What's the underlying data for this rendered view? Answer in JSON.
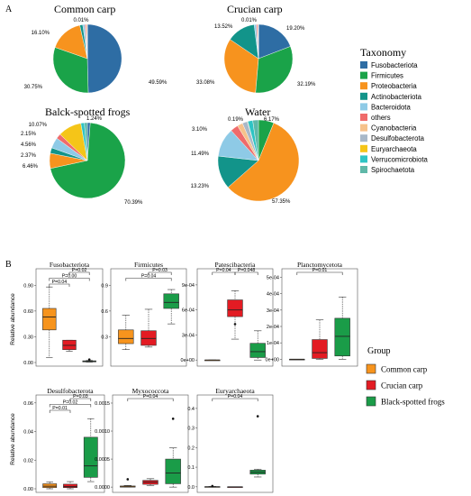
{
  "panel_a_label": "A",
  "panel_b_label": "B",
  "legend_a": {
    "title": "Taxonomy",
    "items": [
      {
        "name": "Fusobacteriota",
        "color": "#2e6da4"
      },
      {
        "name": "Firmicutes",
        "color": "#1aa349"
      },
      {
        "name": "Proteobacteria",
        "color": "#f7931e"
      },
      {
        "name": "Actinobacteriota",
        "color": "#12948a"
      },
      {
        "name": "Bacteroidota",
        "color": "#8ecae6"
      },
      {
        "name": "others",
        "color": "#ef6b6b"
      },
      {
        "name": "Cyanobacteria",
        "color": "#f6c28b"
      },
      {
        "name": "Desulfobacterota",
        "color": "#a9b8c8"
      },
      {
        "name": "Euryarchaeota",
        "color": "#f5c518"
      },
      {
        "name": "Verrucomicrobiota",
        "color": "#2ec4c4"
      },
      {
        "name": "Spirochaetota",
        "color": "#5fb8a8"
      }
    ]
  },
  "legend_b": {
    "title": "Group",
    "items": [
      {
        "name": "Common carp",
        "color": "#f7941d"
      },
      {
        "name": "Crucian carp",
        "color": "#e31b23"
      },
      {
        "name": "Black-spotted frogs",
        "color": "#1a9c48"
      }
    ]
  },
  "y_axis_label": "Relative abundance",
  "chart_data": [
    {
      "type": "pie",
      "title": "Common carp",
      "slices": [
        {
          "name": "Fusobacteriota",
          "value": 49.59,
          "label": "49.59%",
          "color": "#2e6da4"
        },
        {
          "name": "Firmicutes",
          "value": 30.75,
          "label": "30.75%",
          "color": "#1aa349"
        },
        {
          "name": "Proteobacteria",
          "value": 16.1,
          "label": "16.10%",
          "color": "#f7931e"
        },
        {
          "name": "Actinobacteriota",
          "value": 1.4,
          "label": "",
          "color": "#12948a"
        },
        {
          "name": "Bacteroidota",
          "value": 1.0,
          "label": "",
          "color": "#8ecae6"
        },
        {
          "name": "others",
          "value": 0.6,
          "label": "",
          "color": "#ef6b6b"
        },
        {
          "name": "Cyanobacteria",
          "value": 0.55,
          "label": "",
          "color": "#f6c28b"
        },
        {
          "name": "Spirochaetota",
          "value": 0.01,
          "label": "0.01%",
          "color": "#5fb8a8"
        }
      ]
    },
    {
      "type": "pie",
      "title": "Crucian carp",
      "slices": [
        {
          "name": "Fusobacteriota",
          "value": 19.2,
          "label": "19.20%",
          "color": "#2e6da4"
        },
        {
          "name": "Firmicutes",
          "value": 32.19,
          "label": "32.19%",
          "color": "#1aa349"
        },
        {
          "name": "Proteobacteria",
          "value": 33.08,
          "label": "33.08%",
          "color": "#f7931e"
        },
        {
          "name": "Actinobacteriota",
          "value": 13.52,
          "label": "13.52%",
          "color": "#12948a"
        },
        {
          "name": "Bacteroidota",
          "value": 1.0,
          "label": "",
          "color": "#8ecae6"
        },
        {
          "name": "others",
          "value": 0.6,
          "label": "",
          "color": "#ef6b6b"
        },
        {
          "name": "Cyanobacteria",
          "value": 0.4,
          "label": "",
          "color": "#f6c28b"
        },
        {
          "name": "Spirochaetota",
          "value": 0.01,
          "label": "0.01%",
          "color": "#5fb8a8"
        }
      ]
    },
    {
      "type": "pie",
      "title": "Balck-spotted frogs",
      "slices": [
        {
          "name": "Fusobacteriota",
          "value": 1.24,
          "label": "1.24%",
          "color": "#2e6da4"
        },
        {
          "name": "Firmicutes",
          "value": 70.39,
          "label": "70.39%",
          "color": "#1aa349"
        },
        {
          "name": "Proteobacteria",
          "value": 6.46,
          "label": "6.46%",
          "color": "#f7931e"
        },
        {
          "name": "Actinobacteriota",
          "value": 2.37,
          "label": "2.37%",
          "color": "#12948a"
        },
        {
          "name": "Bacteroidota",
          "value": 4.56,
          "label": "4.56%",
          "color": "#8ecae6"
        },
        {
          "name": "others",
          "value": 2.15,
          "label": "2.15%",
          "color": "#ef6b6b"
        },
        {
          "name": "Euryarchaeota",
          "value": 10.07,
          "label": "10.07%",
          "color": "#f5c518"
        },
        {
          "name": "Verrucomicrobiota",
          "value": 1.5,
          "label": "",
          "color": "#2ec4c4"
        },
        {
          "name": "Spirochaetota",
          "value": 1.26,
          "label": "",
          "color": "#5fb8a8"
        }
      ]
    },
    {
      "type": "pie",
      "title": "Water",
      "slices": [
        {
          "name": "Firmicutes",
          "value": 6.17,
          "label": "6.17%",
          "color": "#1aa349"
        },
        {
          "name": "Proteobacteria",
          "value": 57.35,
          "label": "57.35%",
          "color": "#f7931e"
        },
        {
          "name": "Actinobacteriota",
          "value": 13.23,
          "label": "13.23%",
          "color": "#12948a"
        },
        {
          "name": "Bacteroidota",
          "value": 11.49,
          "label": "11.49%",
          "color": "#8ecae6"
        },
        {
          "name": "others",
          "value": 3.1,
          "label": "3.10%",
          "color": "#ef6b6b"
        },
        {
          "name": "Cyanobacteria",
          "value": 2.2,
          "label": "",
          "color": "#f6c28b"
        },
        {
          "name": "Desulfobacterota",
          "value": 2.0,
          "label": "",
          "color": "#a9b8c8"
        },
        {
          "name": "Euryarchaeota",
          "value": 0.19,
          "label": "0.19%",
          "color": "#f5c518"
        },
        {
          "name": "Verrucomicrobiota",
          "value": 2.0,
          "label": "",
          "color": "#2ec4c4"
        },
        {
          "name": "Spirochaetota",
          "value": 2.27,
          "label": "",
          "color": "#5fb8a8"
        }
      ]
    },
    {
      "type": "box",
      "title": "Fusobacteriota",
      "ylim": [
        0,
        1.05
      ],
      "yticks": [
        {
          "v": 0,
          "t": "0.00"
        },
        {
          "v": 0.3,
          "t": "0.30"
        },
        {
          "v": 0.6,
          "t": "0.60"
        },
        {
          "v": 0.9,
          "t": "0.90"
        }
      ],
      "groups": [
        {
          "min": 0.06,
          "q1": 0.38,
          "median": 0.53,
          "q3": 0.63,
          "max": 0.88,
          "outliers": []
        },
        {
          "min": 0.13,
          "q1": 0.15,
          "median": 0.2,
          "q3": 0.26,
          "max": 0.26,
          "outliers": []
        },
        {
          "min": 0.005,
          "q1": 0.008,
          "median": 0.012,
          "q3": 0.02,
          "max": 0.025,
          "outliers": [
            0.035
          ]
        }
      ],
      "brackets": [
        {
          "a": 1,
          "b": 2,
          "label": "P=0.02",
          "level": 0
        },
        {
          "a": 0,
          "b": 2,
          "label": "P=0.00",
          "level": 1
        },
        {
          "a": 0,
          "b": 1,
          "label": "P=0.04",
          "level": 2
        }
      ]
    },
    {
      "type": "box",
      "title": "Firmicutes",
      "ylim": [
        0,
        1.05
      ],
      "yticks": [
        {
          "v": 0.3,
          "t": "0.3"
        },
        {
          "v": 0.6,
          "t": "0.6"
        },
        {
          "v": 0.9,
          "t": "0.9"
        }
      ],
      "groups": [
        {
          "min": 0.15,
          "q1": 0.22,
          "median": 0.28,
          "q3": 0.38,
          "max": 0.55,
          "outliers": []
        },
        {
          "min": 0.18,
          "q1": 0.2,
          "median": 0.28,
          "q3": 0.37,
          "max": 0.62,
          "outliers": []
        },
        {
          "min": 0.45,
          "q1": 0.63,
          "median": 0.7,
          "q3": 0.8,
          "max": 0.85,
          "outliers": []
        }
      ],
      "brackets": [
        {
          "a": 1,
          "b": 2,
          "label": "P=0.03",
          "level": 0
        },
        {
          "a": 0,
          "b": 2,
          "label": "P=0.04",
          "level": 1
        }
      ]
    },
    {
      "type": "box",
      "title": "Patescibacteria",
      "ylim": [
        -3e-05,
        0.00105
      ],
      "yticks": [
        {
          "v": 0,
          "t": "0e+00"
        },
        {
          "v": 0.0003,
          "t": "3e-04"
        },
        {
          "v": 0.0006,
          "t": "6e-04"
        },
        {
          "v": 0.0009,
          "t": "9e-04"
        }
      ],
      "groups": [
        {
          "min": 0,
          "q1": 0,
          "median": 0,
          "q3": 0,
          "max": 0,
          "outliers": []
        },
        {
          "min": 0.00025,
          "q1": 0.00052,
          "median": 0.0006,
          "q3": 0.00072,
          "max": 0.00083,
          "outliers": [
            0.00043
          ]
        },
        {
          "min": 0,
          "q1": 3e-05,
          "median": 0.0001,
          "q3": 0.0002,
          "max": 0.00035,
          "outliers": []
        }
      ],
      "brackets": [
        {
          "a": 1,
          "b": 2,
          "label": "P=0.048",
          "level": 0
        },
        {
          "a": 0,
          "b": 1,
          "label": "P=0.04",
          "level": 0
        }
      ]
    },
    {
      "type": "box",
      "title": "Planctomycetota",
      "ylim": [
        -2e-05,
        0.00053
      ],
      "yticks": [
        {
          "v": 0,
          "t": "0e+00"
        },
        {
          "v": 0.0001,
          "t": "1e-04"
        },
        {
          "v": 0.0002,
          "t": "2e-04"
        },
        {
          "v": 0.0003,
          "t": "3e-04"
        },
        {
          "v": 0.0004,
          "t": "4e-04"
        },
        {
          "v": 0.0005,
          "t": "5e-04"
        }
      ],
      "groups": [
        {
          "min": 0,
          "q1": 0,
          "median": 0,
          "q3": 0,
          "max": 0,
          "outliers": []
        },
        {
          "min": 0,
          "q1": 5e-06,
          "median": 4e-05,
          "q3": 0.00012,
          "max": 0.00024,
          "outliers": []
        },
        {
          "min": 0,
          "q1": 2e-05,
          "median": 0.00014,
          "q3": 0.00025,
          "max": 0.00038,
          "outliers": []
        }
      ],
      "brackets": [
        {
          "a": 0,
          "b": 2,
          "label": "P=0.01",
          "level": 0
        }
      ]
    },
    {
      "type": "box",
      "title": "Desulfobacterota",
      "ylim": [
        0,
        0.063
      ],
      "yticks": [
        {
          "v": 0,
          "t": "0.00"
        },
        {
          "v": 0.02,
          "t": "0.02"
        },
        {
          "v": 0.04,
          "t": "0.04"
        },
        {
          "v": 0.06,
          "t": "0.06"
        }
      ],
      "groups": [
        {
          "min": 0.0,
          "q1": 0.0008,
          "median": 0.0018,
          "q3": 0.0035,
          "max": 0.0048,
          "outliers": []
        },
        {
          "min": 0.0,
          "q1": 0.0008,
          "median": 0.0015,
          "q3": 0.0032,
          "max": 0.005,
          "outliers": []
        },
        {
          "min": 0.005,
          "q1": 0.008,
          "median": 0.016,
          "q3": 0.036,
          "max": 0.049,
          "outliers": []
        }
      ],
      "brackets": [
        {
          "a": 1,
          "b": 2,
          "label": "P=0.03",
          "level": 0
        },
        {
          "a": 0,
          "b": 2,
          "label": "P=0.02",
          "level": 1
        },
        {
          "a": 0,
          "b": 1,
          "label": "P=0.01",
          "level": 2
        }
      ]
    },
    {
      "type": "box",
      "title": "Myxococcota",
      "ylim": [
        -3e-05,
        0.00158
      ],
      "yticks": [
        {
          "v": 0,
          "t": "0.0000"
        },
        {
          "v": 0.0005,
          "t": "0.0005"
        },
        {
          "v": 0.001,
          "t": "0.0010"
        },
        {
          "v": 0.0015,
          "t": "0.0015"
        }
      ],
      "groups": [
        {
          "min": 0,
          "q1": 0,
          "median": 5e-06,
          "q3": 2e-05,
          "max": 3e-05,
          "outliers": [
            0.00014
          ]
        },
        {
          "min": 3e-05,
          "q1": 5e-05,
          "median": 9e-05,
          "q3": 0.00012,
          "max": 0.00015,
          "outliers": []
        },
        {
          "min": 0,
          "q1": 6e-05,
          "median": 0.00025,
          "q3": 0.0005,
          "max": 0.0007,
          "outliers": [
            0.00122
          ]
        }
      ],
      "brackets": [
        {
          "a": 0,
          "b": 2,
          "label": "P=0.04",
          "level": 0
        }
      ]
    },
    {
      "type": "box",
      "title": "Euryarchaeota",
      "ylim": [
        -0.01,
        0.45
      ],
      "yticks": [
        {
          "v": 0,
          "t": "0.0"
        },
        {
          "v": 0.1,
          "t": "0.1"
        },
        {
          "v": 0.2,
          "t": "0.2"
        },
        {
          "v": 0.3,
          "t": "0.3"
        },
        {
          "v": 0.4,
          "t": "0.4"
        }
      ],
      "groups": [
        {
          "min": 0,
          "q1": 0,
          "median": 0,
          "q3": 0.001,
          "max": 0.002,
          "outliers": [
            0.004
          ]
        },
        {
          "min": 0,
          "q1": 0,
          "median": 0,
          "q3": 0,
          "max": 0,
          "outliers": []
        },
        {
          "min": 0.05,
          "q1": 0.065,
          "median": 0.075,
          "q3": 0.085,
          "max": 0.09,
          "outliers": [
            0.36
          ]
        }
      ],
      "brackets": [
        {
          "a": 0,
          "b": 2,
          "label": "P=0.04",
          "level": 0
        }
      ]
    }
  ]
}
